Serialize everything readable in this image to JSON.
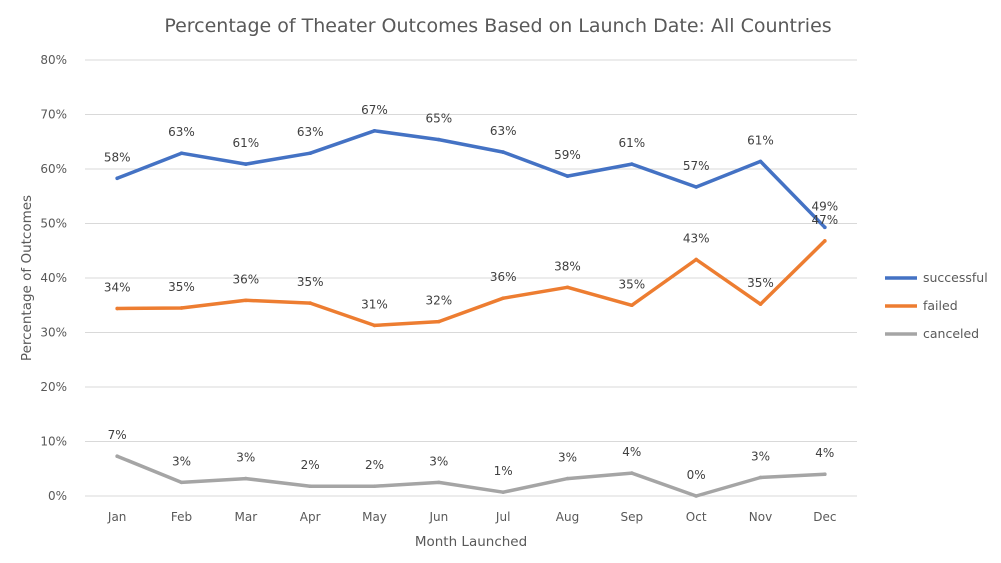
{
  "chart_data": {
    "type": "line",
    "title": "Percentage of Theater Outcomes Based on Launch Date: All Countries",
    "xlabel": "Month Launched",
    "ylabel": "Percentage of Outcomes",
    "categories": [
      "Jan",
      "Feb",
      "Mar",
      "Apr",
      "May",
      "Jun",
      "Jul",
      "Aug",
      "Sep",
      "Oct",
      "Nov",
      "Dec"
    ],
    "ylim": [
      0,
      80
    ],
    "yticks": [
      "0%",
      "10%",
      "20%",
      "30%",
      "40%",
      "50%",
      "60%",
      "70%",
      "80%"
    ],
    "grid": true,
    "legend_position": "right",
    "series": [
      {
        "name": "successful",
        "color": "#4472c4",
        "values": [
          58.3,
          62.9,
          60.9,
          62.9,
          67.0,
          65.4,
          63.1,
          58.7,
          60.9,
          56.7,
          61.4,
          49.3
        ],
        "labels": [
          "58%",
          "63%",
          "61%",
          "63%",
          "67%",
          "65%",
          "63%",
          "59%",
          "61%",
          "57%",
          "61%",
          "49%"
        ]
      },
      {
        "name": "failed",
        "color": "#ed7d31",
        "values": [
          34.4,
          34.5,
          35.9,
          35.4,
          31.3,
          32.0,
          36.3,
          38.3,
          35.0,
          43.4,
          35.2,
          46.8
        ],
        "labels": [
          "34%",
          "35%",
          "36%",
          "35%",
          "31%",
          "32%",
          "36%",
          "38%",
          "35%",
          "43%",
          "35%",
          "47%"
        ]
      },
      {
        "name": "canceled",
        "color": "#a5a5a5",
        "values": [
          7.3,
          2.5,
          3.2,
          1.8,
          1.8,
          2.5,
          0.7,
          3.2,
          4.2,
          0.0,
          3.4,
          4.0
        ],
        "labels": [
          "7%",
          "3%",
          "3%",
          "2%",
          "2%",
          "3%",
          "1%",
          "3%",
          "4%",
          "0%",
          "3%",
          "4%"
        ]
      }
    ]
  }
}
